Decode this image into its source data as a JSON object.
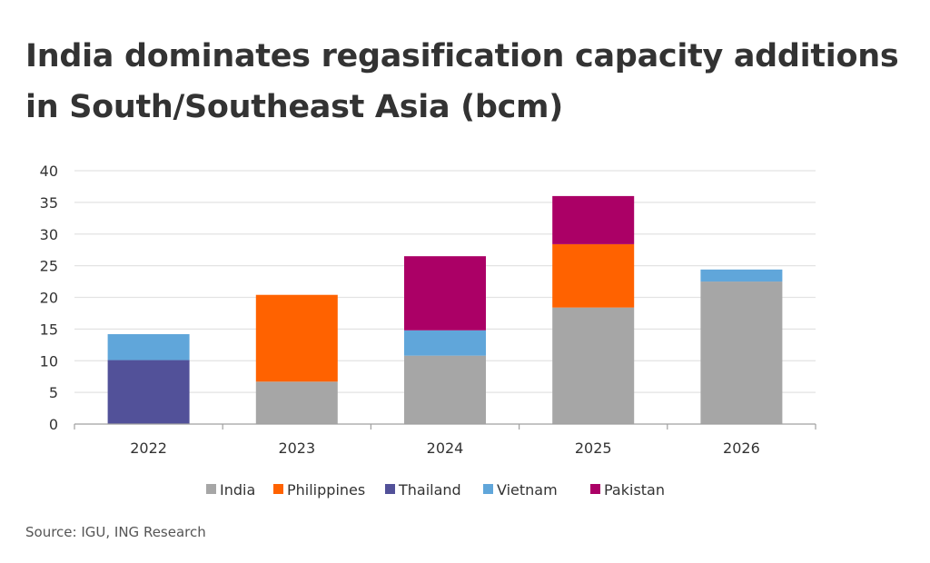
{
  "chart_data": {
    "type": "bar",
    "stacked": true,
    "title": "India dominates regasification capacity additions in South/Southeast Asia (bcm)",
    "xlabel": "",
    "ylabel": "",
    "categories": [
      "2022",
      "2023",
      "2024",
      "2025",
      "2026"
    ],
    "ylim": [
      0,
      40
    ],
    "yticks": [
      0,
      5,
      10,
      15,
      20,
      25,
      30,
      35,
      40
    ],
    "grid": true,
    "legend_position": "bottom",
    "series": [
      {
        "name": "India",
        "color": "#a6a6a6",
        "values": [
          0,
          6.7,
          10.8,
          18.4,
          22.5
        ]
      },
      {
        "name": "Philippines",
        "color": "#ff6200",
        "values": [
          0,
          13.7,
          0,
          10.0,
          0
        ]
      },
      {
        "name": "Thailand",
        "color": "#525199",
        "values": [
          10.1,
          0,
          0,
          0,
          0
        ]
      },
      {
        "name": "Vietnam",
        "color": "#60a6da",
        "values": [
          4.1,
          0,
          4.0,
          0,
          1.9
        ]
      },
      {
        "name": "Pakistan",
        "color": "#ab0066",
        "values": [
          0,
          0,
          11.7,
          7.6,
          0
        ]
      }
    ]
  },
  "source": "Source: IGU, ING Research"
}
